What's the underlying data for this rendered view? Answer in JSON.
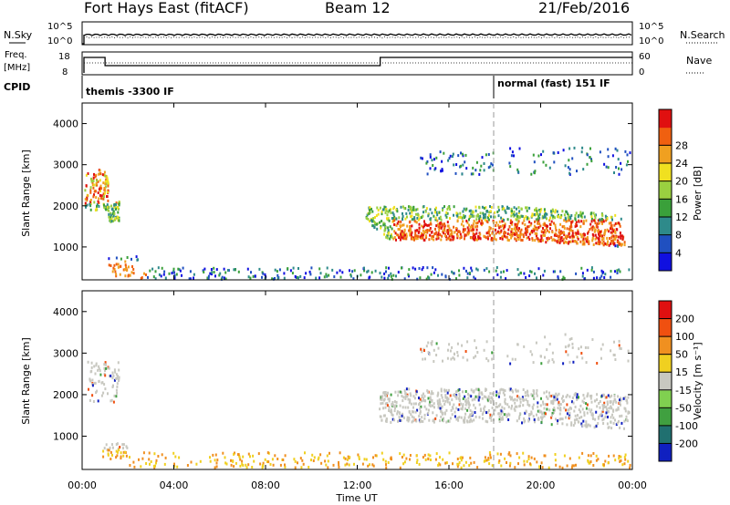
{
  "header": {
    "station": "Fort Hays East (fitACF)",
    "beam": "Beam 12",
    "date": "21/Feb/2016"
  },
  "panels": {
    "noise": {
      "left_label": "N.Sky",
      "right_label": "N.Search",
      "tick_top": "10^5",
      "tick_bottom": "10^0",
      "tick_top_right": "10^5",
      "tick_bottom_right": "10^0"
    },
    "freq": {
      "left_label_line1": "Freq.",
      "left_label_line2": "[MHz]",
      "right_label": "Nave",
      "tick_top": "18",
      "tick_bottom": "8",
      "tick_top_right": "60",
      "tick_bottom_right": "0"
    },
    "cpid": {
      "label": "CPID",
      "mode1": "themis -3300 IF",
      "mode2": "normal (fast) 151 IF"
    }
  },
  "chart_data": [
    {
      "type": "heatmap",
      "name": "power",
      "ylabel": "Slant Range [km]",
      "ylim": [
        200,
        4500
      ],
      "yticks": [
        1000,
        2000,
        3000,
        4000
      ],
      "colorbar_label": "Power [dB]",
      "colorbar_ticks": [
        4,
        8,
        12,
        16,
        20,
        24,
        28
      ],
      "colorbar_colors": [
        "#1010e0",
        "#2050c0",
        "#2e8a8a",
        "#3aa03a",
        "#9ad040",
        "#f0e020",
        "#f0a020",
        "#f06010",
        "#e01010"
      ]
    },
    {
      "type": "heatmap",
      "name": "velocity",
      "ylabel": "Slant Range [km]",
      "ylim": [
        200,
        4500
      ],
      "yticks": [
        1000,
        2000,
        3000,
        4000
      ],
      "colorbar_label": "Velocity [m s⁻¹]",
      "colorbar_ticks": [
        200,
        100,
        50,
        15,
        -15,
        -50,
        -100,
        -200
      ],
      "colorbar_colors": [
        "#1020c0",
        "#207070",
        "#40a040",
        "#80d050",
        "#c8c8c0",
        "#f0d020",
        "#f09020",
        "#f05010",
        "#e01010"
      ]
    }
  ],
  "time_axis": {
    "label": "Time UT",
    "ticks": [
      "00:00",
      "04:00",
      "08:00",
      "12:00",
      "16:00",
      "20:00",
      "00:00"
    ]
  }
}
